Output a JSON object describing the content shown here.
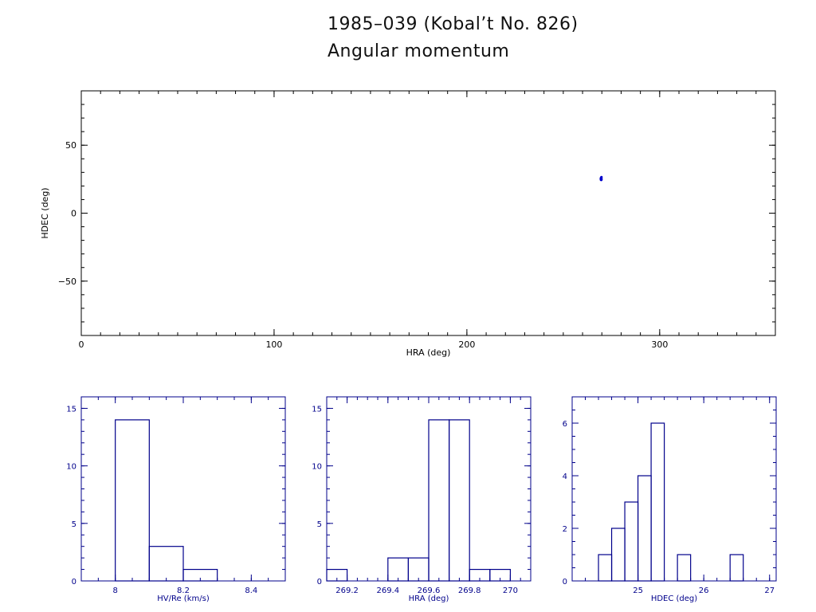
{
  "header": {
    "title": "1985–039 (Kobal’t No. 826)",
    "subtitle": "Angular momentum"
  },
  "colors": {
    "scatter_axes": "#000000",
    "hist_axes": "#00008b",
    "points": "#0000cc"
  },
  "chart_data": [
    {
      "type": "scatter",
      "xlabel": "HRA (deg)",
      "ylabel": "HDEC (deg)",
      "xlim": [
        0,
        360
      ],
      "ylim": [
        -90,
        90
      ],
      "xticks": [
        0,
        100,
        200,
        300
      ],
      "yticks": [
        -50,
        0,
        50
      ],
      "xtick_labels": [
        "0",
        "100",
        "200",
        "300"
      ],
      "ytick_labels": [
        "−50",
        "0",
        "50"
      ],
      "points": [
        {
          "x": 269.6,
          "y": 25.3
        },
        {
          "x": 269.7,
          "y": 25.5
        },
        {
          "x": 269.65,
          "y": 24.9
        },
        {
          "x": 269.55,
          "y": 25.1
        },
        {
          "x": 269.75,
          "y": 25.0
        },
        {
          "x": 269.6,
          "y": 24.6
        },
        {
          "x": 269.7,
          "y": 25.3
        },
        {
          "x": 269.5,
          "y": 25.7
        },
        {
          "x": 269.8,
          "y": 26.5
        },
        {
          "x": 269.65,
          "y": 25.2
        },
        {
          "x": 269.55,
          "y": 24.8
        },
        {
          "x": 269.7,
          "y": 24.5
        },
        {
          "x": 269.6,
          "y": 25.4
        },
        {
          "x": 269.75,
          "y": 25.1
        }
      ]
    },
    {
      "type": "bar",
      "subtype": "histogram",
      "xlabel": "HV/Re (km/s)",
      "xlim": [
        7.9,
        8.5
      ],
      "ylim": [
        0,
        16
      ],
      "xticks": [
        8.0,
        8.2,
        8.4
      ],
      "xtick_labels": [
        "8",
        "8.2",
        "8.4"
      ],
      "yticks": [
        0,
        5,
        10,
        15
      ],
      "ytick_labels": [
        "0",
        "5",
        "10",
        "15"
      ],
      "bin_edges": [
        8.0,
        8.1,
        8.2,
        8.3
      ],
      "counts": [
        14,
        3,
        1
      ]
    },
    {
      "type": "bar",
      "subtype": "histogram",
      "xlabel": "HRA (deg)",
      "xlim": [
        269.1,
        270.1
      ],
      "ylim": [
        0,
        16
      ],
      "xticks": [
        269.2,
        269.4,
        269.6,
        269.8,
        270.0
      ],
      "xtick_labels": [
        "269.2",
        "269.4",
        "269.6",
        "269.8",
        "270"
      ],
      "yticks": [
        0,
        5,
        10,
        15
      ],
      "ytick_labels": [
        "0",
        "5",
        "10",
        "15"
      ],
      "bin_edges": [
        269.1,
        269.2,
        269.3,
        269.4,
        269.5,
        269.6,
        269.7,
        269.8,
        269.9,
        270.0
      ],
      "counts": [
        1,
        0,
        0,
        2,
        2,
        14,
        14,
        1,
        1
      ]
    },
    {
      "type": "bar",
      "subtype": "histogram",
      "xlabel": "HDEC (deg)",
      "xlim": [
        24.0,
        27.1
      ],
      "ylim": [
        0,
        7
      ],
      "xticks": [
        25,
        26,
        27
      ],
      "xtick_labels": [
        "25",
        "26",
        "27"
      ],
      "yticks": [
        0,
        2,
        4,
        6
      ],
      "ytick_labels": [
        "0",
        "2",
        "4",
        "6"
      ],
      "bin_edges": [
        24.4,
        24.6,
        24.8,
        25.0,
        25.2,
        25.4,
        25.6,
        25.8,
        26.0,
        26.2,
        26.4,
        26.6
      ],
      "counts": [
        1,
        2,
        3,
        4,
        6,
        0,
        1,
        0,
        0,
        0,
        1
      ]
    }
  ]
}
